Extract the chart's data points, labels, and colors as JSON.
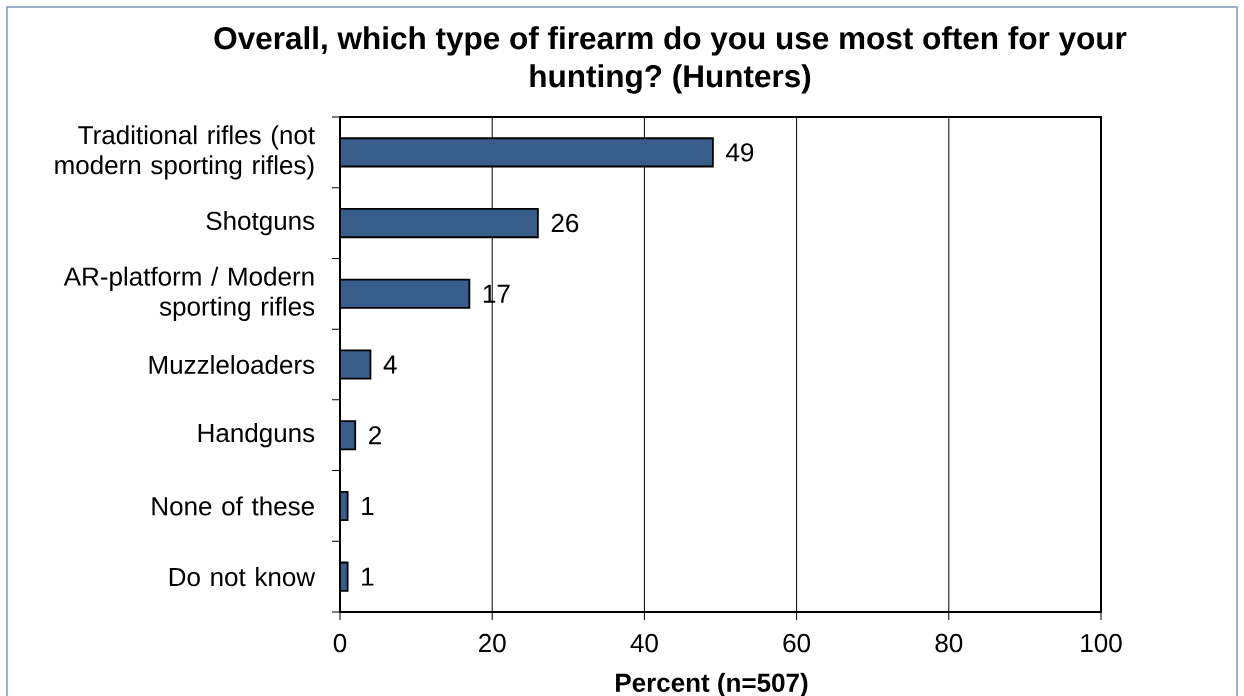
{
  "chart_data": {
    "type": "bar",
    "orientation": "horizontal",
    "title": "Overall, which type of firearm do you use most often for your hunting? (Hunters)",
    "xlabel": "Percent (n=507)",
    "categories": [
      "Traditional rifles (not modern sporting rifles)",
      "Shotguns",
      "AR-platform / Modern sporting rifles",
      "Muzzleloaders",
      "Handguns",
      "None of these",
      "Do not know"
    ],
    "values": [
      49,
      26,
      17,
      4,
      2,
      1,
      1
    ],
    "color": "#385d8a",
    "xlim": [
      0,
      100
    ],
    "xticks": [
      0,
      20,
      40,
      60,
      80,
      100
    ],
    "grid": "x",
    "data_labels": true
  }
}
